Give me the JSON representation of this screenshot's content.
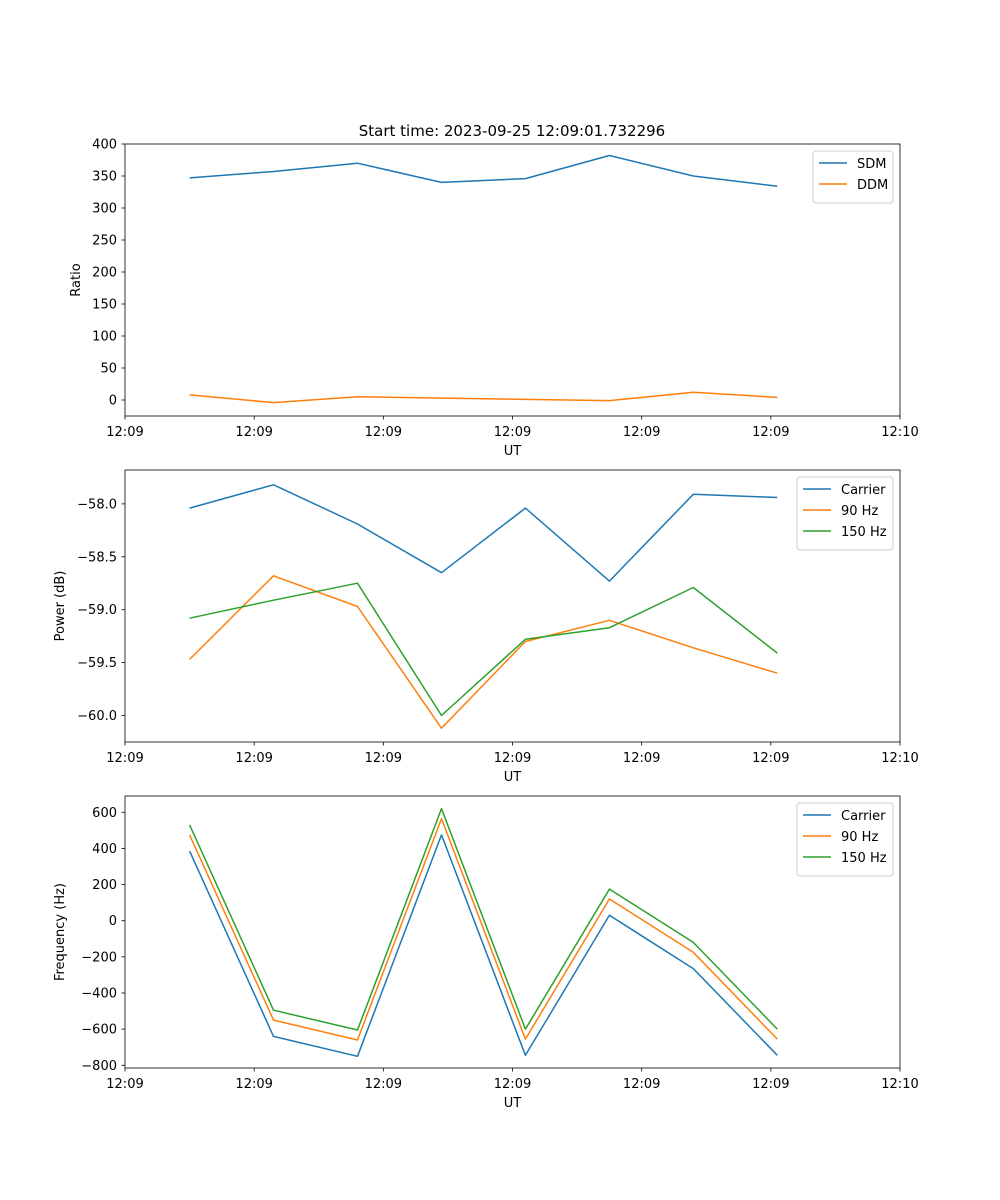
{
  "title": "Start time: 2023-09-25 12:09:01.732296",
  "chart_data": [
    {
      "type": "line",
      "xlabel": "UT",
      "ylabel": "Ratio",
      "xlim": [
        0,
        12
      ],
      "ylim": [
        -25,
        400
      ],
      "x": [
        1,
        2.3,
        3.6,
        4.9,
        6.2,
        7.5,
        8.8,
        10.1
      ],
      "xticks": [
        0,
        2,
        4,
        6,
        8,
        10,
        12
      ],
      "xtick_labels": [
        "12:09",
        "12:09",
        "12:09",
        "12:09",
        "12:09",
        "12:09",
        "12:10"
      ],
      "yticks": [
        0,
        50,
        100,
        150,
        200,
        250,
        300,
        350,
        400
      ],
      "ytick_labels": [
        "0",
        "50",
        "100",
        "150",
        "200",
        "250",
        "300",
        "350",
        "400"
      ],
      "legend_position": "top-right",
      "series": [
        {
          "name": "SDM",
          "color": "#1f77b4",
          "values": [
            347,
            357,
            370,
            340,
            346,
            382,
            350,
            334
          ]
        },
        {
          "name": "DDM",
          "color": "#ff7f0e",
          "values": [
            8,
            -4,
            5,
            3,
            1,
            -1,
            12,
            4
          ]
        }
      ]
    },
    {
      "type": "line",
      "xlabel": "UT",
      "ylabel": "Power (dB)",
      "xlim": [
        0,
        12
      ],
      "ylim": [
        -60.25,
        -57.68
      ],
      "x": [
        1,
        2.3,
        3.6,
        4.9,
        6.2,
        7.5,
        8.8,
        10.1
      ],
      "xticks": [
        0,
        2,
        4,
        6,
        8,
        10,
        12
      ],
      "xtick_labels": [
        "12:09",
        "12:09",
        "12:09",
        "12:09",
        "12:09",
        "12:09",
        "12:10"
      ],
      "yticks": [
        -60.0,
        -59.5,
        -59.0,
        -58.5,
        -58.0
      ],
      "ytick_labels": [
        "−60.0",
        "−59.5",
        "−59.0",
        "−58.5",
        "−58.0"
      ],
      "legend_position": "top-right",
      "series": [
        {
          "name": "Carrier",
          "color": "#1f77b4",
          "values": [
            -58.04,
            -57.82,
            -58.19,
            -58.65,
            -58.04,
            -58.73,
            -57.91,
            -57.94
          ]
        },
        {
          "name": "90 Hz",
          "color": "#ff7f0e",
          "values": [
            -59.47,
            -58.68,
            -58.97,
            -60.12,
            -59.3,
            -59.1,
            -59.36,
            -59.6
          ]
        },
        {
          "name": "150 Hz",
          "color": "#2ca02c",
          "values": [
            -59.08,
            -58.91,
            -58.75,
            -60.0,
            -59.28,
            -59.17,
            -58.79,
            -59.41
          ]
        }
      ]
    },
    {
      "type": "line",
      "xlabel": "UT",
      "ylabel": "Frequency (Hz)",
      "xlim": [
        0,
        12
      ],
      "ylim": [
        -815,
        690
      ],
      "x": [
        1,
        2.3,
        3.6,
        4.9,
        6.2,
        7.5,
        8.8,
        10.1
      ],
      "xticks": [
        0,
        2,
        4,
        6,
        8,
        10,
        12
      ],
      "xtick_labels": [
        "12:09",
        "12:09",
        "12:09",
        "12:09",
        "12:09",
        "12:09",
        "12:10"
      ],
      "yticks": [
        -800,
        -600,
        -400,
        -200,
        0,
        200,
        400,
        600
      ],
      "ytick_labels": [
        "−800",
        "−600",
        "−400",
        "−200",
        "0",
        "200",
        "400",
        "600"
      ],
      "legend_position": "top-right",
      "series": [
        {
          "name": "Carrier",
          "color": "#1f77b4",
          "values": [
            385,
            -640,
            -750,
            475,
            -745,
            30,
            -265,
            -745
          ]
        },
        {
          "name": "90 Hz",
          "color": "#ff7f0e",
          "values": [
            475,
            -550,
            -660,
            565,
            -655,
            120,
            -175,
            -655
          ]
        },
        {
          "name": "150 Hz",
          "color": "#2ca02c",
          "values": [
            530,
            -495,
            -605,
            620,
            -600,
            175,
            -120,
            -600
          ]
        }
      ]
    }
  ]
}
